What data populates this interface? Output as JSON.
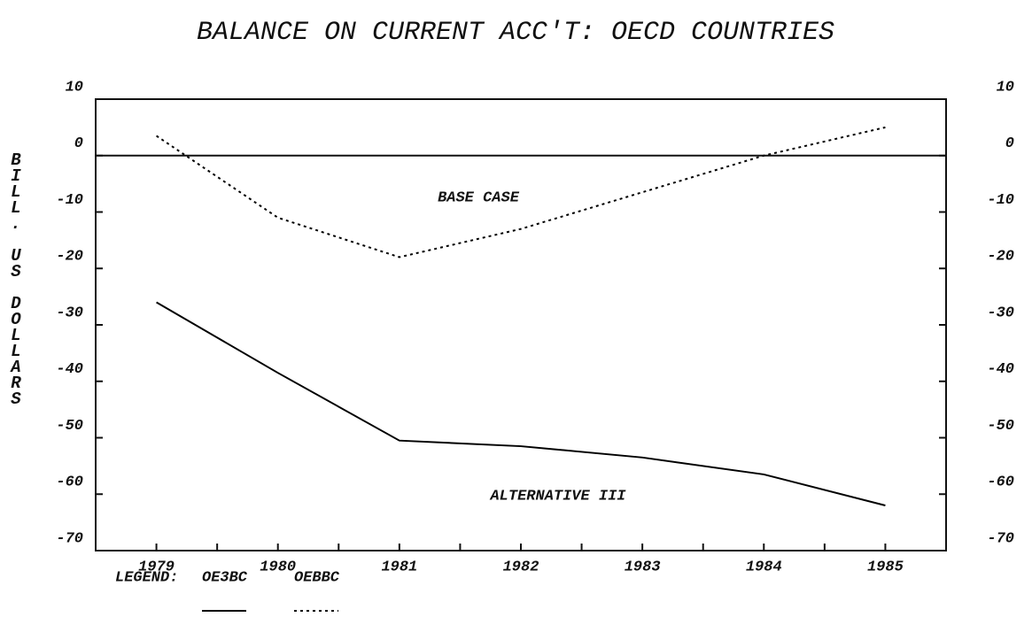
{
  "chart_data": {
    "type": "line",
    "title": "BALANCE ON CURRENT ACC'T: OECD COUNTRIES",
    "y_label": "BILL. US DOLLARS",
    "x": [
      1979,
      1980,
      1981,
      1982,
      1983,
      1984,
      1985
    ],
    "series": [
      {
        "name": "OE3BC",
        "color": "#000000",
        "dash": "solid",
        "values": [
          -26,
          -38.5,
          -50.5,
          -51.5,
          -53.5,
          -56.5,
          -62
        ]
      },
      {
        "name": "OEBBC",
        "color": "#000000",
        "dash": "dotted",
        "values": [
          3.5,
          -11,
          -18,
          -13,
          -6.5,
          0,
          5
        ]
      }
    ],
    "annotations": [
      "BASE CASE",
      "ALTERNATIVE III"
    ],
    "legend_title": "LEGEND:",
    "xlim": [
      1978.5,
      1985.5
    ],
    "xticks": [
      1979,
      1980,
      1981,
      1982,
      1983,
      1984,
      1985
    ],
    "x_minor_ticks": [
      1979.5,
      1980.5,
      1981.5,
      1982.5,
      1983.5,
      1984.5
    ],
    "ylim": [
      -70,
      10
    ],
    "yticks": [
      -70,
      -60,
      -50,
      -40,
      -30,
      -20,
      -10,
      0,
      10
    ],
    "y2lim": [
      -70,
      10
    ],
    "y2ticks": [
      -70,
      -60,
      -50,
      -40,
      -30,
      -20,
      -10,
      0,
      10
    ],
    "zero_line": true
  }
}
